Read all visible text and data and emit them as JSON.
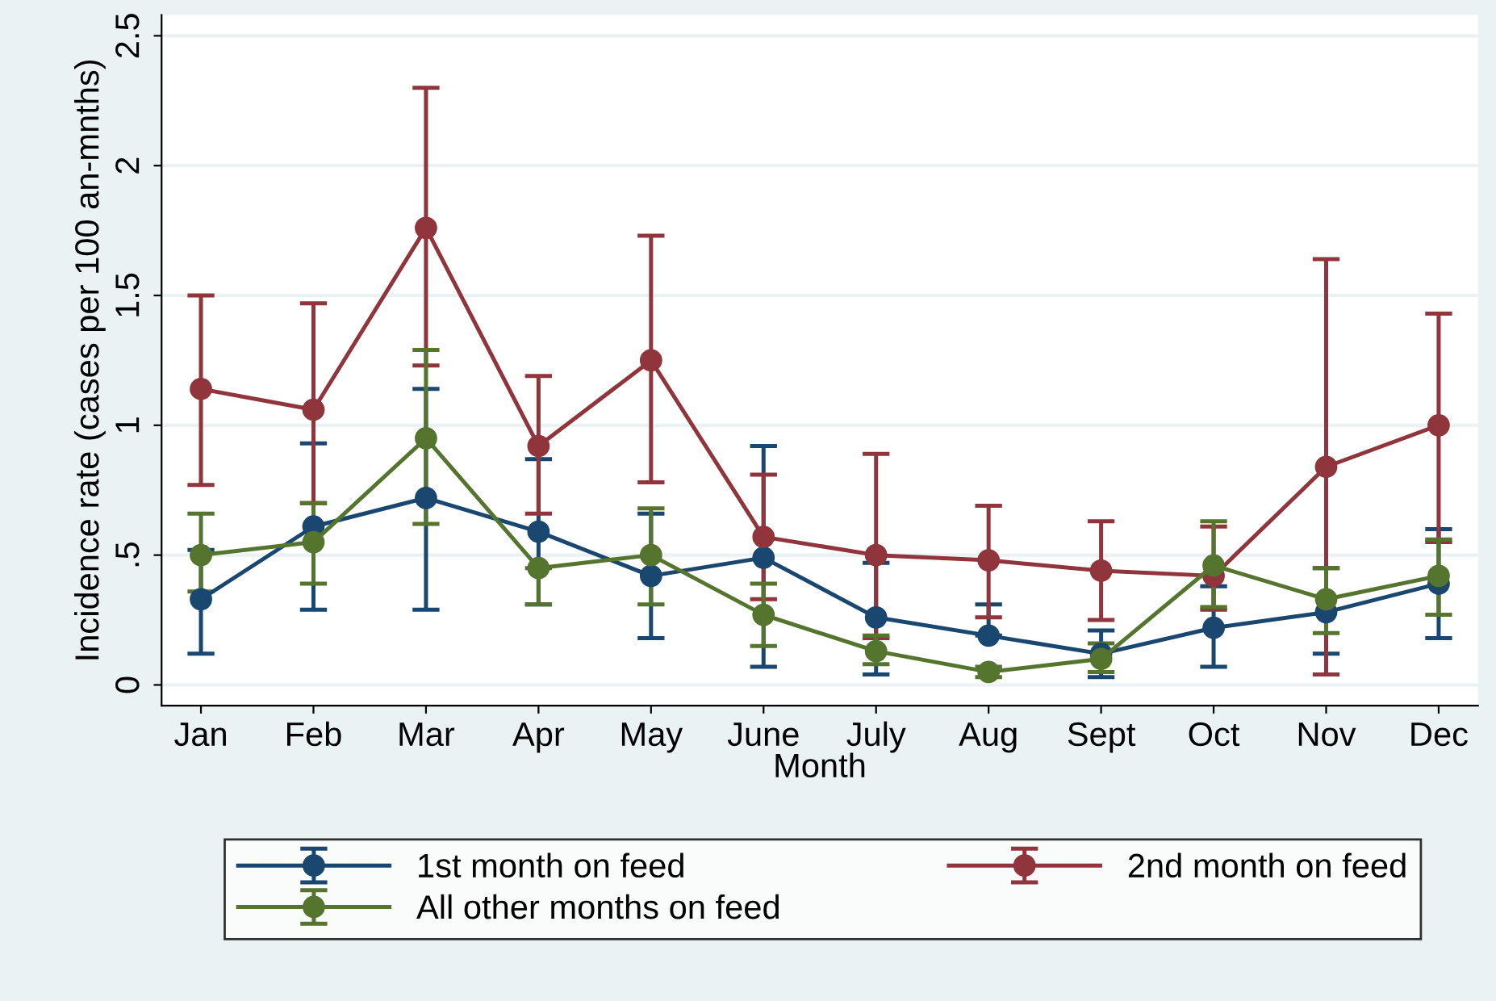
{
  "chart_data": {
    "type": "line",
    "xlabel": "Month",
    "ylabel": "Incidence rate (cases per 100 an-mnths)",
    "categories": [
      "Jan",
      "Feb",
      "Mar",
      "Apr",
      "May",
      "June",
      "July",
      "Aug",
      "Sept",
      "Oct",
      "Nov",
      "Dec"
    ],
    "series": [
      {
        "name": "1st month on feed",
        "color": "#1a476f",
        "values": [
          0.33,
          0.61,
          0.72,
          0.59,
          0.42,
          0.49,
          0.26,
          0.19,
          0.12,
          0.22,
          0.28,
          0.39
        ],
        "errors": [
          [
            0.12,
            0.52
          ],
          [
            0.29,
            0.93
          ],
          [
            0.29,
            1.14
          ],
          [
            0.31,
            0.87
          ],
          [
            0.18,
            0.66
          ],
          [
            0.07,
            0.92
          ],
          [
            0.04,
            0.47
          ],
          [
            0.19,
            0.31
          ],
          [
            0.03,
            0.21
          ],
          [
            0.07,
            0.38
          ],
          [
            0.12,
            0.45
          ],
          [
            0.18,
            0.6
          ]
        ]
      },
      {
        "name": "2nd month on feed",
        "color": "#90353b",
        "values": [
          1.14,
          1.06,
          1.76,
          0.92,
          1.25,
          0.57,
          0.5,
          0.48,
          0.44,
          0.42,
          0.84,
          1.0
        ],
        "errors": [
          [
            0.77,
            1.5
          ],
          [
            0.7,
            1.47
          ],
          [
            1.23,
            2.3
          ],
          [
            0.66,
            1.19
          ],
          [
            0.78,
            1.73
          ],
          [
            0.33,
            0.81
          ],
          [
            0.18,
            0.89
          ],
          [
            0.26,
            0.69
          ],
          [
            0.25,
            0.63
          ],
          [
            0.29,
            0.61
          ],
          [
            0.04,
            1.64
          ],
          [
            0.55,
            1.43
          ]
        ]
      },
      {
        "name": "All other months on feed",
        "color": "#55752f",
        "values": [
          0.5,
          0.55,
          0.95,
          0.45,
          0.5,
          0.27,
          0.13,
          0.05,
          0.1,
          0.46,
          0.33,
          0.42
        ],
        "errors": [
          [
            0.36,
            0.66
          ],
          [
            0.39,
            0.7
          ],
          [
            0.62,
            1.29
          ],
          [
            0.31,
            0.45
          ],
          [
            0.31,
            0.68
          ],
          [
            0.15,
            0.39
          ],
          [
            0.08,
            0.19
          ],
          [
            0.03,
            0.07
          ],
          [
            0.05,
            0.16
          ],
          [
            0.3,
            0.63
          ],
          [
            0.2,
            0.45
          ],
          [
            0.27,
            0.56
          ]
        ]
      }
    ],
    "ylim": [
      -0.08,
      2.58
    ],
    "yticks": [
      {
        "value": 0,
        "label": "0"
      },
      {
        "value": 0.5,
        "label": ".5"
      },
      {
        "value": 1,
        "label": "1"
      },
      {
        "value": 1.5,
        "label": "1.5"
      },
      {
        "value": 2,
        "label": "2"
      },
      {
        "value": 2.5,
        "label": "2.5"
      }
    ],
    "grid": "y",
    "legend": "bottom",
    "marker": "circle",
    "line_style": "solid"
  }
}
